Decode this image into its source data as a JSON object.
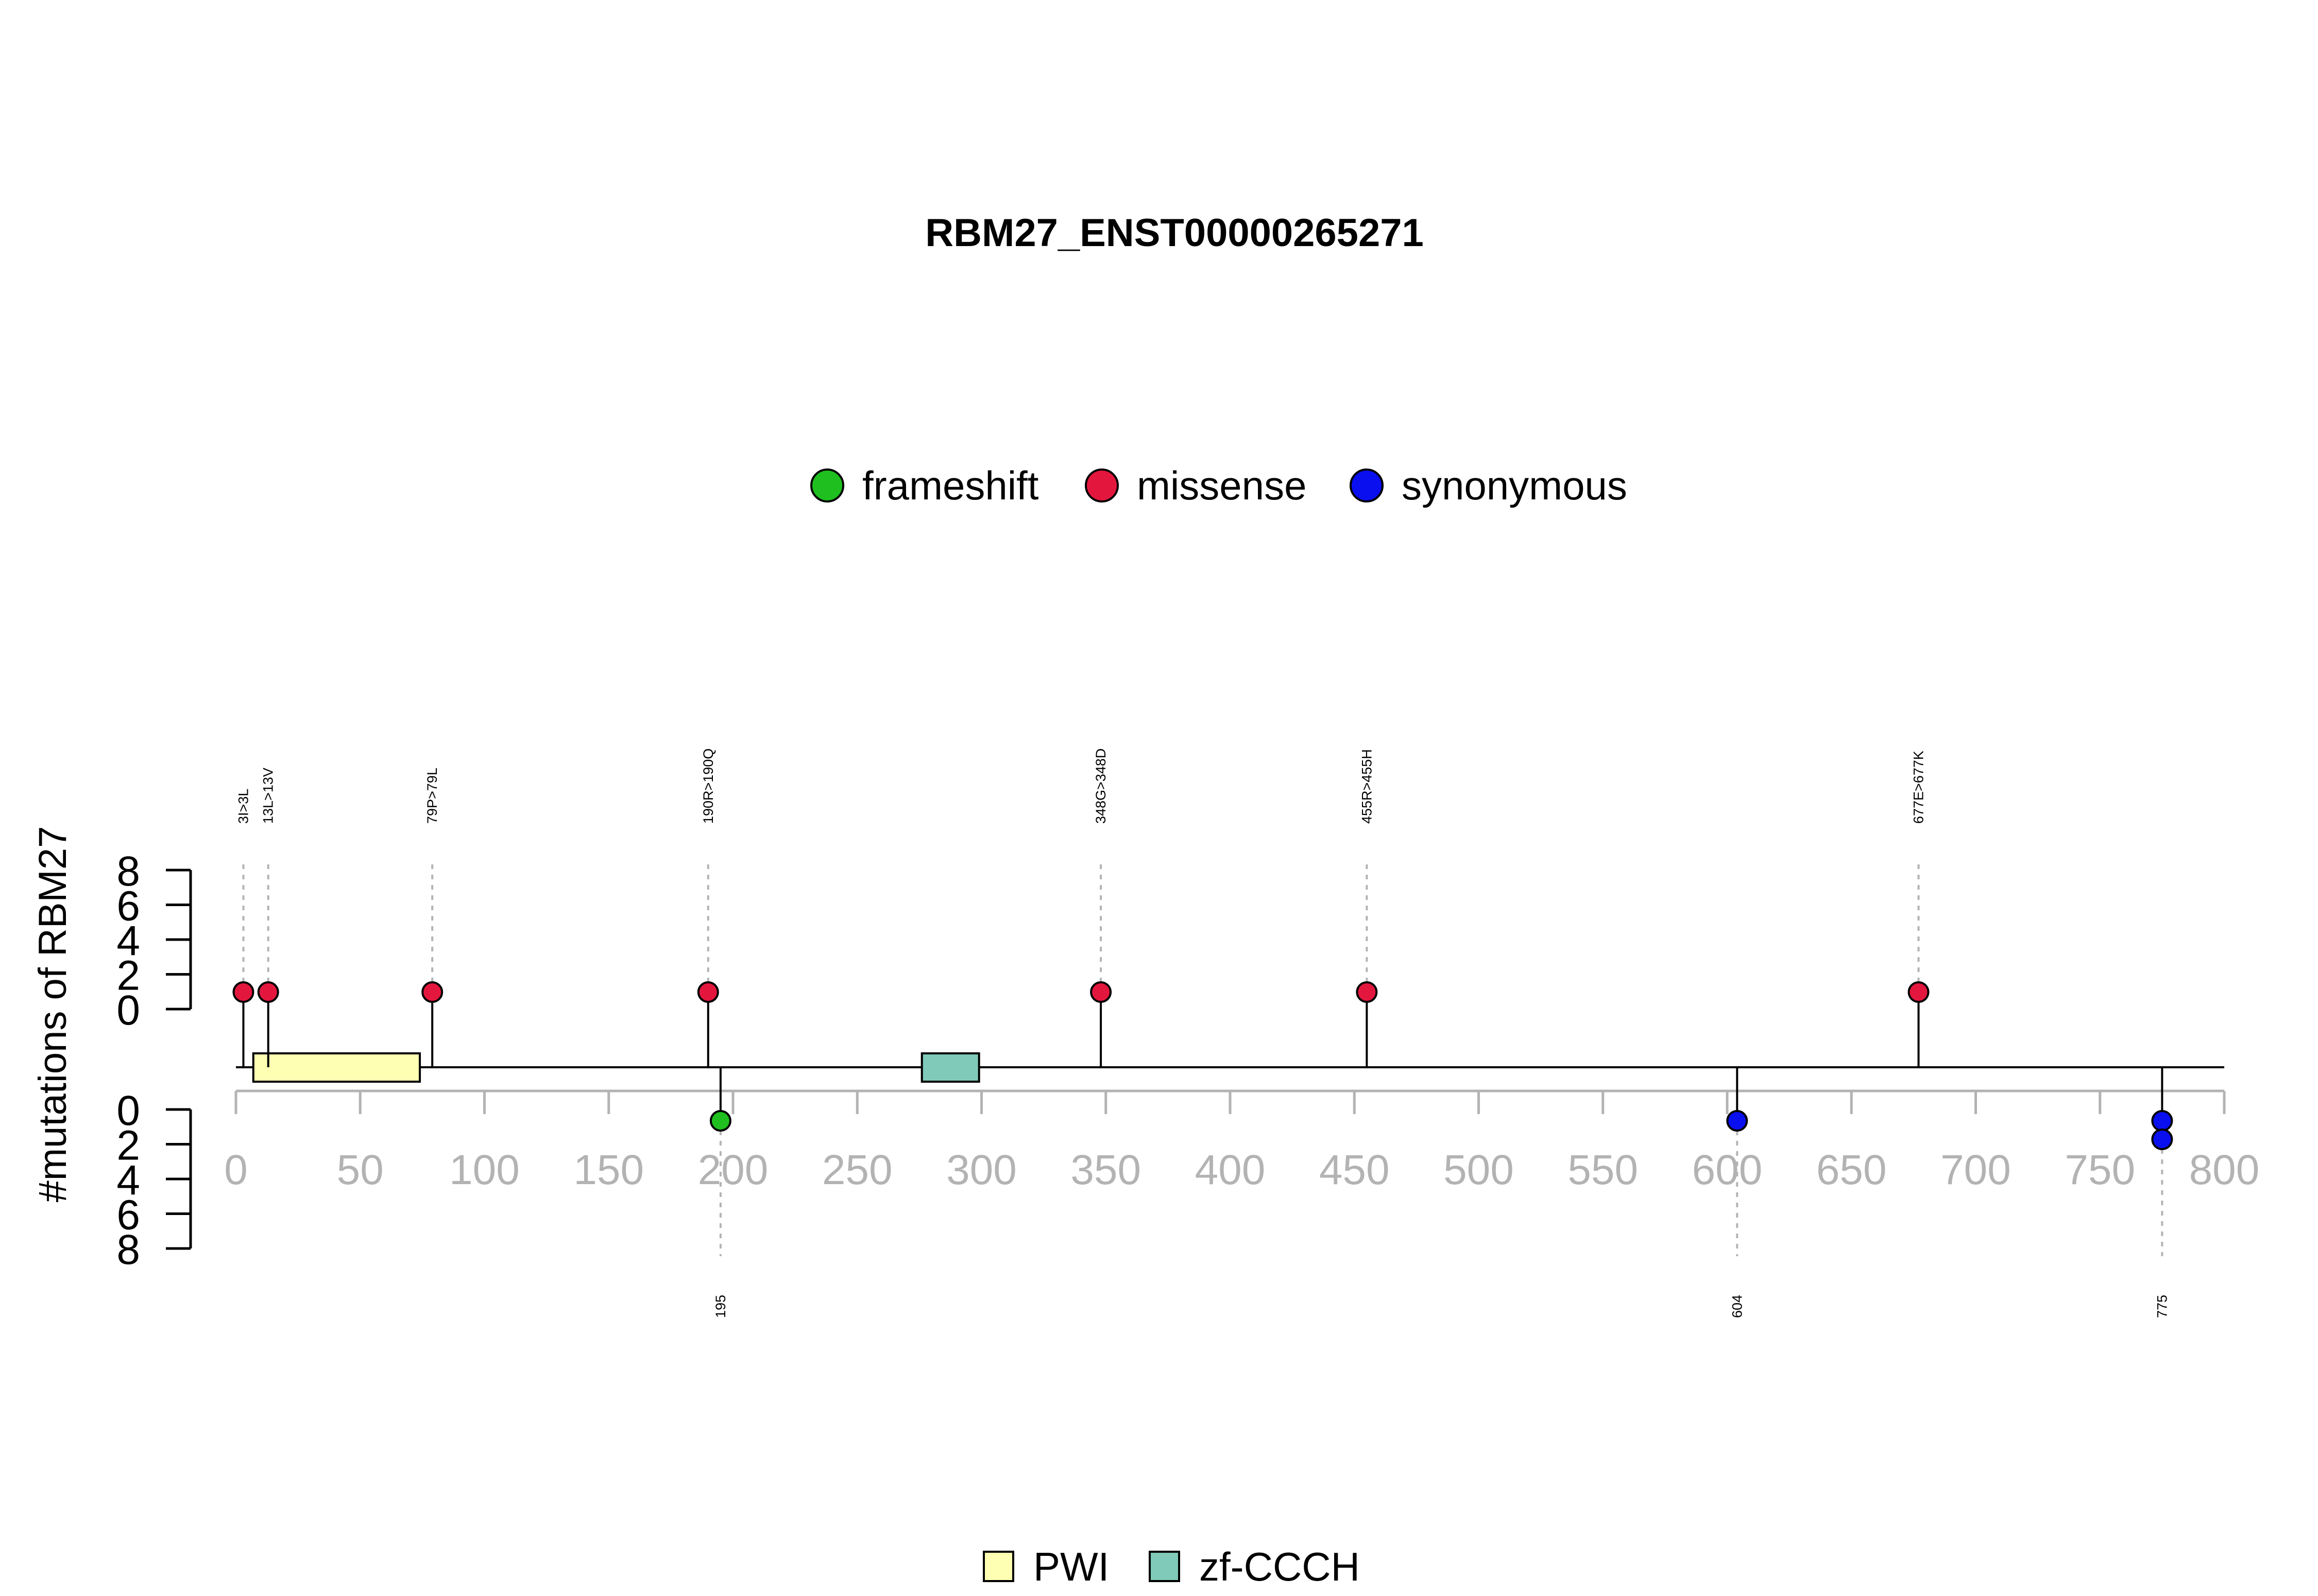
{
  "chart_data": {
    "type": "lollipop",
    "title": "RBM27_ENST00000265271",
    "ylabel": "#mutations of RBM27",
    "xlim": [
      0,
      800
    ],
    "x_ticks": [
      "0",
      "50",
      "100",
      "150",
      "200",
      "250",
      "300",
      "350",
      "400",
      "450",
      "500",
      "550",
      "600",
      "650",
      "700",
      "750",
      "800"
    ],
    "y_ticks_top": [
      "8",
      "6",
      "4",
      "2",
      "0"
    ],
    "y_ticks_bottom": [
      "0",
      "2",
      "4",
      "6",
      "8"
    ],
    "ylim": [
      0,
      8
    ],
    "mutation_legend": [
      {
        "name": "frameshift",
        "color": "#1fbf1f"
      },
      {
        "name": "missense",
        "color": "#e3173e"
      },
      {
        "name": "synonymous",
        "color": "#0a0ff0"
      }
    ],
    "domain_legend": [
      {
        "name": "PWI",
        "color": "#ffffb3"
      },
      {
        "name": "zf-CCCH",
        "color": "#7fcab9"
      }
    ],
    "domains": [
      {
        "name": "PWI",
        "start": 7,
        "end": 74
      },
      {
        "name": "zf-CCCH",
        "start": 276,
        "end": 299
      }
    ],
    "mutations_top": [
      {
        "position": 3,
        "label": "3I>3L",
        "type": "missense",
        "count": 1
      },
      {
        "position": 13,
        "label": "13L>13V",
        "type": "missense",
        "count": 1
      },
      {
        "position": 79,
        "label": "79P>79L",
        "type": "missense",
        "count": 1
      },
      {
        "position": 190,
        "label": "190R>190Q",
        "type": "missense",
        "count": 1
      },
      {
        "position": 348,
        "label": "348G>348D",
        "type": "missense",
        "count": 1
      },
      {
        "position": 455,
        "label": "455R>455H",
        "type": "missense",
        "count": 1
      },
      {
        "position": 677,
        "label": "677E>677K",
        "type": "missense",
        "count": 1
      }
    ],
    "mutations_bottom": [
      {
        "position": 195,
        "label": "195",
        "types": [
          "frameshift"
        ]
      },
      {
        "position": 604,
        "label": "604",
        "types": [
          "synonymous"
        ]
      },
      {
        "position": 775,
        "label": "775",
        "types": [
          "synonymous",
          "synonymous"
        ]
      }
    ]
  }
}
